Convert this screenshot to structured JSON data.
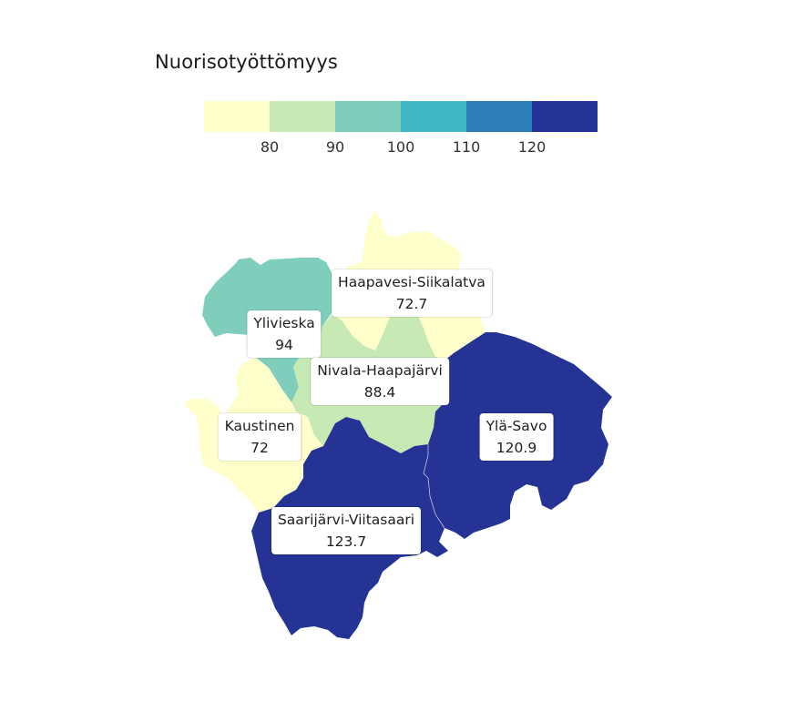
{
  "legend": {
    "title": "Nuorisotyöttömyys",
    "ticks": [
      "80",
      "90",
      "100",
      "110",
      "120"
    ],
    "colors": [
      "#ffffcc",
      "#c7e9b4",
      "#7fcdbb",
      "#41b6c4",
      "#2c7fb8",
      "#253494"
    ]
  },
  "regions": [
    {
      "name": "Haapavesi-Siikalatva",
      "value": "72.7",
      "color": "#ffffcc"
    },
    {
      "name": "Ylivieska",
      "value": "94",
      "color": "#7fcdbb"
    },
    {
      "name": "Nivala-Haapajärvi",
      "value": "88.4",
      "color": "#c7e9b4"
    },
    {
      "name": "Kaustinen",
      "value": "72",
      "color": "#ffffcc"
    },
    {
      "name": "Ylä-Savo",
      "value": "120.9",
      "color": "#253494"
    },
    {
      "name": "Saarijärvi-Viitasaari",
      "value": "123.7",
      "color": "#253494"
    }
  ]
}
